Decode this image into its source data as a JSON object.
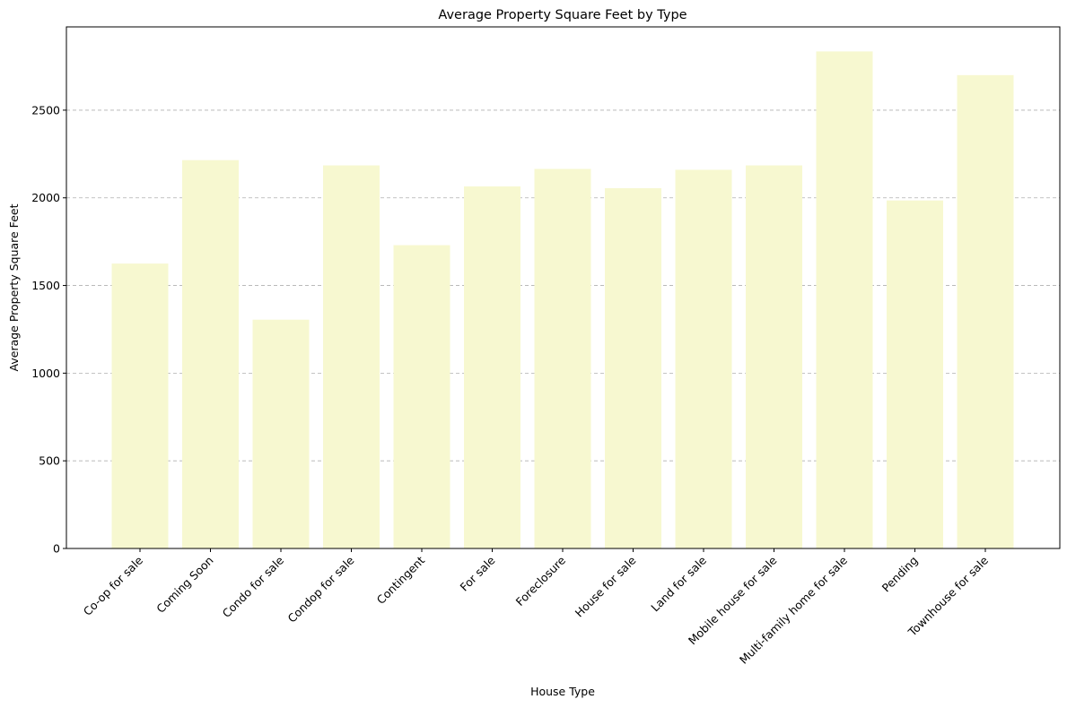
{
  "chart_data": {
    "type": "bar",
    "title": "Average Property Square Feet by Type",
    "xlabel": "House Type",
    "ylabel": "Average Property Square Feet",
    "categories": [
      "Co-op for sale",
      "Coming Soon",
      "Condo for sale",
      "Condop for sale",
      "Contingent",
      "For sale",
      "Foreclosure",
      "House for sale",
      "Land for sale",
      "Mobile house for sale",
      "Multi-family home for sale",
      "Pending",
      "Townhouse for sale"
    ],
    "values": [
      1625,
      2215,
      1305,
      2185,
      1730,
      2065,
      2165,
      2055,
      2160,
      2185,
      2835,
      1985,
      2700
    ],
    "ylim": [
      0,
      2975
    ],
    "yticks": [
      0,
      500,
      1000,
      1500,
      2000,
      2500
    ],
    "grid": "y-axis dashed",
    "bar_color": "#f7f8d0"
  }
}
